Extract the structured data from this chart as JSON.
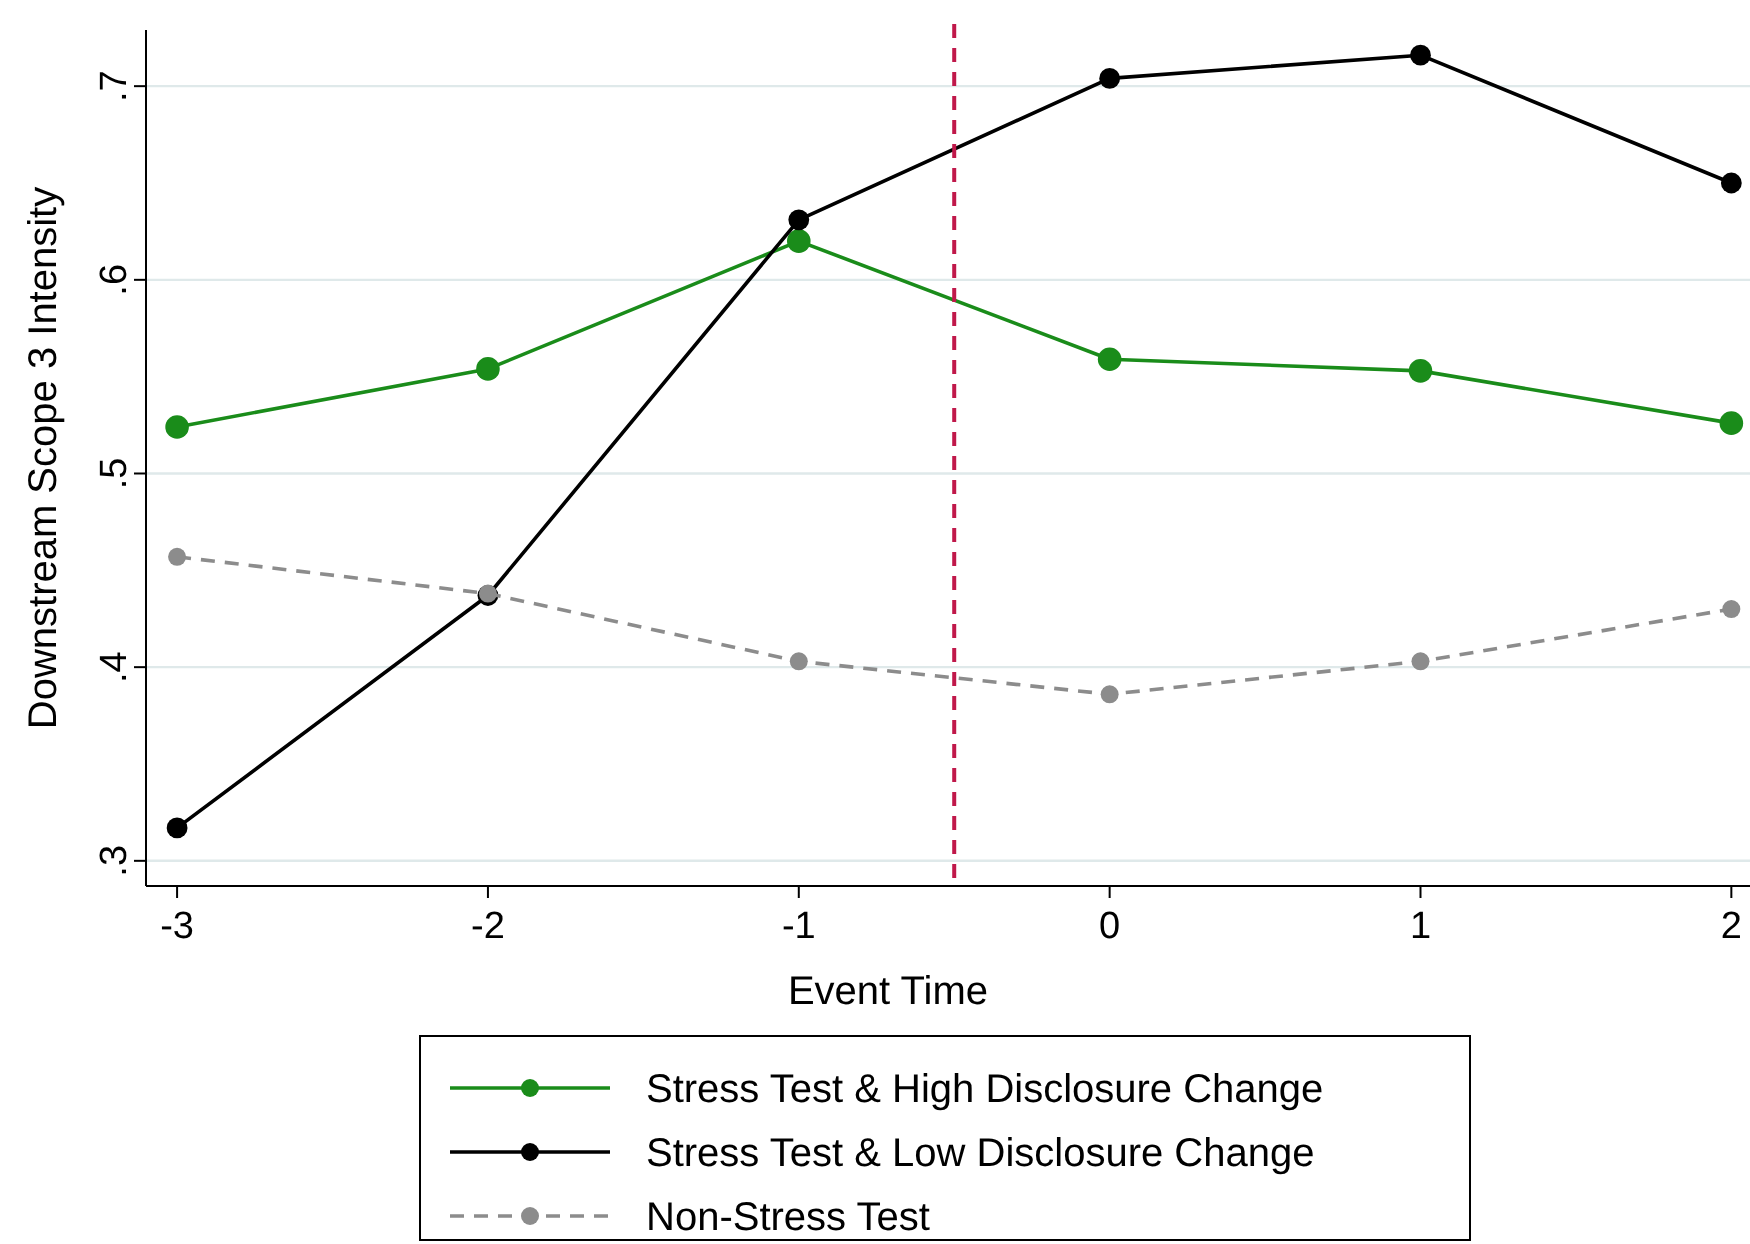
{
  "chart_data": {
    "type": "line",
    "xlabel": "Event Time",
    "ylabel": "Downstream Scope 3 Intensity",
    "x": [
      -3,
      -2,
      -1,
      0,
      1,
      2
    ],
    "xlim": [
      -3.1,
      2.06
    ],
    "xticks": [
      -3,
      -2,
      -1,
      0,
      1,
      2
    ],
    "ylim": [
      0.287,
      0.729
    ],
    "yticks": [
      {
        "value": 0.3,
        "label": ".3"
      },
      {
        "value": 0.4,
        "label": ".4"
      },
      {
        "value": 0.5,
        "label": ".5"
      },
      {
        "value": 0.6,
        "label": ".6"
      },
      {
        "value": 0.7,
        "label": ".7"
      }
    ],
    "grid": "y",
    "legend": "bottom",
    "marker": "circle",
    "series": [
      {
        "name": "Stress Test & High Disclosure Change",
        "color": "#1a8c1a",
        "values": [
          0.524,
          0.554,
          0.62,
          0.559,
          0.553,
          0.526
        ]
      },
      {
        "name": "Stress Test & Low Disclosure Change",
        "color": "#000000",
        "values": [
          0.317,
          0.437,
          0.631,
          0.704,
          0.716,
          0.65
        ]
      },
      {
        "name": "Non-Stress Test",
        "color": "#8c8c8c",
        "line_style": "dashed",
        "values": [
          0.457,
          0.438,
          0.403,
          0.386,
          0.403,
          0.43
        ]
      }
    ],
    "ref_lines": [
      {
        "axis": "x",
        "value": -0.5,
        "color": "#c0184a",
        "line_style": "dashed"
      }
    ]
  }
}
